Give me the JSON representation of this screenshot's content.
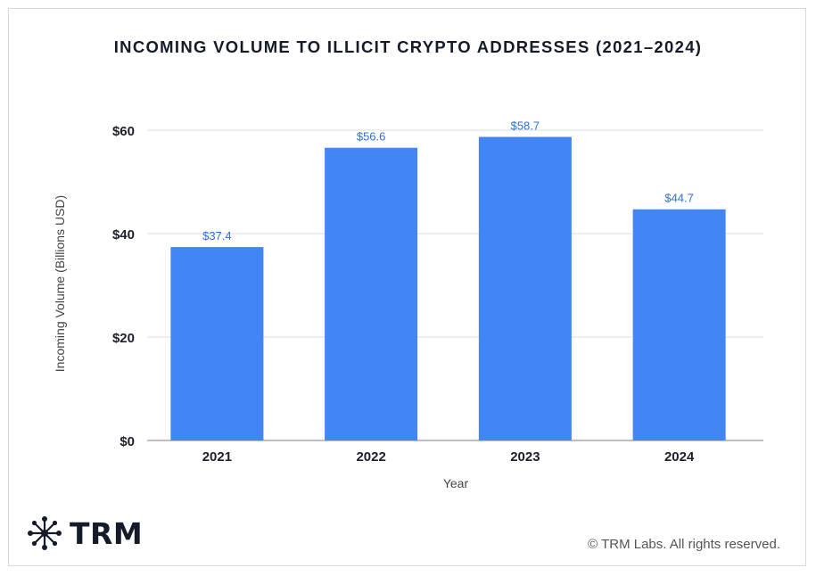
{
  "chart_data": {
    "type": "bar",
    "title": "INCOMING VOLUME TO ILLICIT CRYPTO ADDRESSES (2021–2024)",
    "categories": [
      "2021",
      "2022",
      "2023",
      "2024"
    ],
    "values": [
      37.4,
      56.6,
      58.7,
      44.7
    ],
    "data_labels": [
      "$37.4",
      "$56.6",
      "$58.7",
      "$44.7"
    ],
    "xlabel": "Year",
    "ylabel": "Incoming Volume (Billions USD)",
    "ylim": [
      0,
      60
    ],
    "yticks": [
      0,
      20,
      40,
      60
    ],
    "ytick_labels": [
      "$0",
      "$20",
      "$40",
      "$60"
    ],
    "grid": true,
    "bar_color": "#4285f4",
    "label_color": "#2f6fd6"
  },
  "brand": {
    "logo_text": "TRM",
    "logo_icon": "snowflake-node-icon"
  },
  "footer": {
    "copyright": "© TRM Labs. All rights reserved."
  }
}
